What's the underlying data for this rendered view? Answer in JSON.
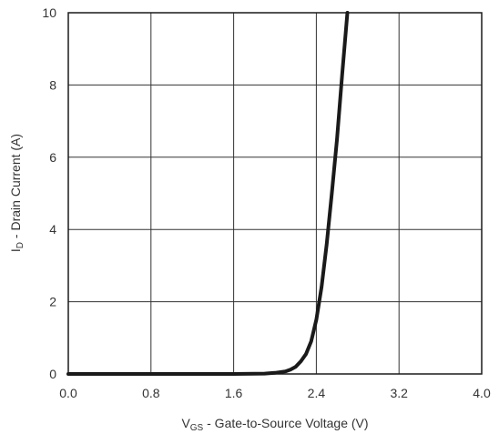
{
  "chart_data": {
    "type": "line",
    "title": "",
    "xlabel_main": "V",
    "xlabel_sub": "GS",
    "xlabel_rest": " - Gate-to-Source Voltage (V)",
    "ylabel_main": "I",
    "ylabel_sub": "D",
    "ylabel_rest": " - Drain Current (A)",
    "xlim": [
      0,
      4
    ],
    "ylim": [
      0,
      10
    ],
    "x_ticks": [
      "0.0",
      "0.8",
      "1.6",
      "2.4",
      "3.2",
      "4.0"
    ],
    "x_tick_values": [
      0,
      0.8,
      1.6,
      2.4,
      3.2,
      4.0
    ],
    "y_ticks": [
      "0",
      "2",
      "4",
      "6",
      "8",
      "10"
    ],
    "y_tick_values": [
      0,
      2,
      4,
      6,
      8,
      10
    ],
    "grid": true,
    "series": [
      {
        "x": [
          0.0,
          1.6,
          1.8,
          1.9,
          2.0,
          2.1,
          2.15,
          2.2,
          2.25,
          2.3,
          2.35,
          2.4,
          2.45,
          2.5,
          2.55,
          2.6,
          2.65,
          2.7
        ],
        "y": [
          0.0,
          0.0,
          0.005,
          0.01,
          0.03,
          0.07,
          0.12,
          0.2,
          0.35,
          0.55,
          0.9,
          1.5,
          2.4,
          3.6,
          5.0,
          6.5,
          8.3,
          10.0
        ]
      }
    ],
    "colors": {
      "line": "#1a1a1a",
      "grid": "#333333",
      "text": "#333333"
    }
  }
}
